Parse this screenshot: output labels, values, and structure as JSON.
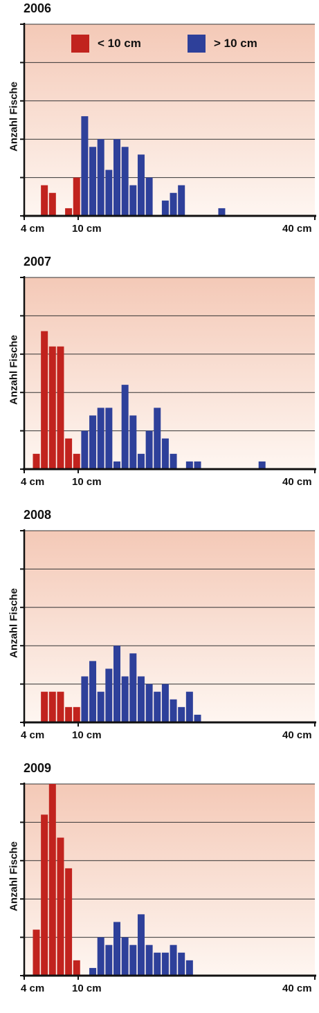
{
  "colors": {
    "small": "#c1231e",
    "large": "#2e409a",
    "bg_top": "#f4c9b7",
    "bg_bottom": "#fef6f1",
    "grid": "#333333",
    "axis": "#111111"
  },
  "legend": {
    "small_label": "< 10 cm",
    "large_label": "> 10 cm"
  },
  "chart_data": [
    {
      "type": "bar",
      "title": "2006",
      "ylabel": "Anzahl Fische",
      "xlim": [
        4,
        40
      ],
      "xticks": [
        "4 cm",
        "10 cm",
        "40 cm"
      ],
      "ylim": [
        0,
        25
      ],
      "grid": true,
      "legend": "top",
      "series": [
        {
          "name": "< 10 cm",
          "color": "#c1231e",
          "x": [
            6,
            7,
            9,
            10
          ],
          "values": [
            4,
            3,
            1,
            5
          ]
        },
        {
          "name": "> 10 cm",
          "color": "#2e409a",
          "x": [
            11,
            12,
            13,
            14,
            15,
            16,
            17,
            18,
            19,
            21,
            22,
            23,
            28
          ],
          "values": [
            13,
            9,
            10,
            6,
            10,
            9,
            4,
            8,
            5,
            2,
            3,
            4,
            1
          ]
        }
      ]
    },
    {
      "type": "bar",
      "title": "2007",
      "ylabel": "Anzahl Fische",
      "xlim": [
        4,
        40
      ],
      "xticks": [
        "4 cm",
        "10 cm",
        "40 cm"
      ],
      "ylim": [
        0,
        50
      ],
      "grid": true,
      "series": [
        {
          "name": "< 10 cm",
          "color": "#c1231e",
          "x": [
            5,
            6,
            7,
            8,
            9,
            10
          ],
          "values": [
            4,
            36,
            32,
            32,
            8,
            4
          ]
        },
        {
          "name": "> 10 cm",
          "color": "#2e409a",
          "x": [
            11,
            12,
            13,
            14,
            15,
            16,
            17,
            18,
            19,
            20,
            21,
            22,
            24,
            25,
            33
          ],
          "values": [
            10,
            14,
            16,
            16,
            2,
            22,
            14,
            4,
            10,
            16,
            8,
            4,
            2,
            2,
            2
          ]
        }
      ]
    },
    {
      "type": "bar",
      "title": "2008",
      "ylabel": "Anzahl Fische",
      "xlim": [
        4,
        40
      ],
      "xticks": [
        "4 cm",
        "10 cm",
        "40 cm"
      ],
      "ylim": [
        0,
        25
      ],
      "grid": true,
      "series": [
        {
          "name": "< 10 cm",
          "color": "#c1231e",
          "x": [
            6,
            7,
            8,
            9,
            10
          ],
          "values": [
            4,
            4,
            4,
            2,
            2
          ]
        },
        {
          "name": "> 10 cm",
          "color": "#2e409a",
          "x": [
            11,
            12,
            13,
            14,
            15,
            16,
            17,
            18,
            19,
            20,
            21,
            22,
            23,
            24,
            25
          ],
          "values": [
            6,
            8,
            4,
            7,
            10,
            6,
            9,
            6,
            5,
            4,
            5,
            3,
            2,
            4,
            1
          ]
        }
      ]
    },
    {
      "type": "bar",
      "title": "2009",
      "ylabel": "Anzahl Fische",
      "xlim": [
        4,
        40
      ],
      "xticks": [
        "4 cm",
        "10 cm",
        "40 cm"
      ],
      "ylim": [
        0,
        50
      ],
      "grid": true,
      "series": [
        {
          "name": "< 10 cm",
          "color": "#c1231e",
          "x": [
            5,
            6,
            7,
            8,
            9,
            10
          ],
          "values": [
            12,
            42,
            50,
            36,
            28,
            4
          ]
        },
        {
          "name": "> 10 cm",
          "color": "#2e409a",
          "x": [
            12,
            13,
            14,
            15,
            16,
            17,
            18,
            19,
            20,
            21,
            22,
            23,
            24
          ],
          "values": [
            2,
            10,
            8,
            14,
            10,
            8,
            16,
            8,
            6,
            6,
            8,
            6,
            4
          ]
        }
      ]
    }
  ]
}
